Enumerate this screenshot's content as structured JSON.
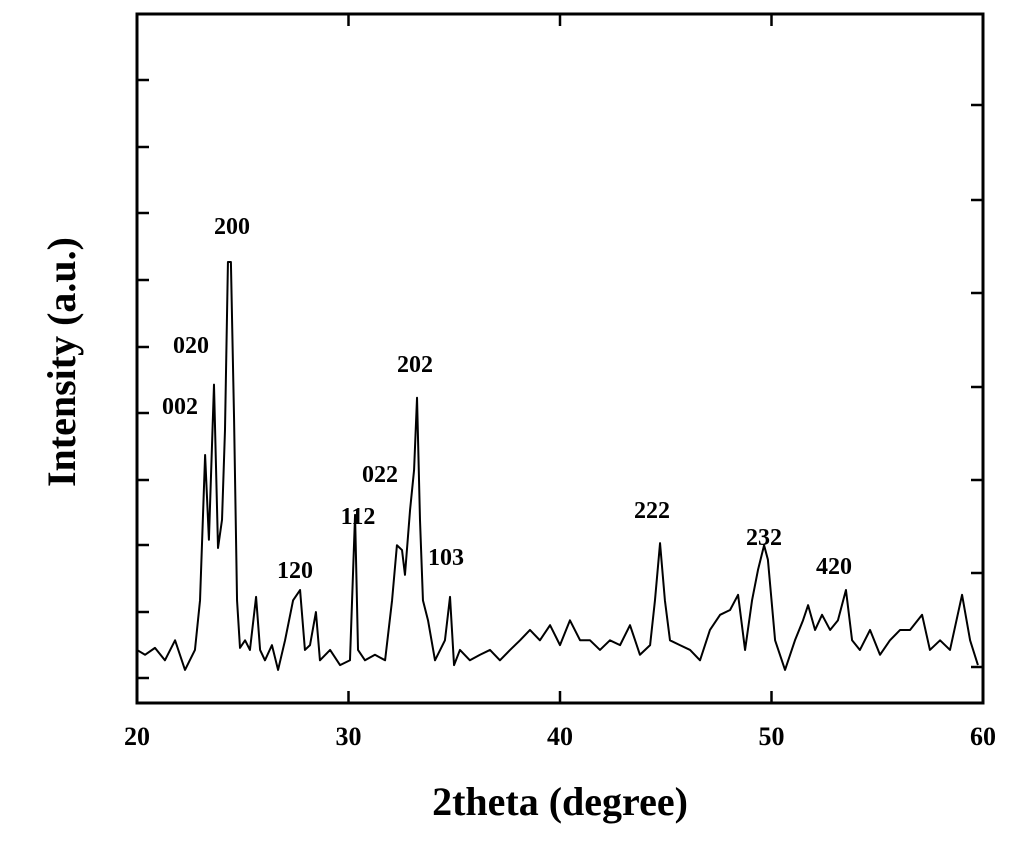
{
  "chart_data": {
    "type": "line",
    "x_label": "2theta (degree)",
    "y_label": "Intensity (a.u.)",
    "xlim": [
      20,
      60
    ],
    "xticks": [
      20,
      30,
      40,
      50,
      60
    ],
    "ylim": [
      0,
      100
    ],
    "series": [
      {
        "color": "#000000",
        "x": [
          20.0,
          20.38,
          20.85,
          21.32,
          21.8,
          22.27,
          22.74,
          22.98,
          23.22,
          23.4,
          23.64,
          23.83,
          24.02,
          24.16,
          24.3,
          24.44,
          24.59,
          24.73,
          24.87,
          25.11,
          25.34,
          25.63,
          25.82,
          26.05,
          26.38,
          26.67,
          27.0,
          27.38,
          27.71,
          27.94,
          28.18,
          28.46,
          28.65,
          29.13,
          29.6,
          30.07,
          30.31,
          30.45,
          30.78,
          31.25,
          31.73,
          32.06,
          32.29,
          32.53,
          32.67,
          32.91,
          33.1,
          33.24,
          33.38,
          33.52,
          33.76,
          34.09,
          34.56,
          34.8,
          34.99,
          35.27,
          35.74,
          36.22,
          36.69,
          37.16,
          37.64,
          38.11,
          38.58,
          39.05,
          39.53,
          40.0,
          40.47,
          40.95,
          41.42,
          41.89,
          42.36,
          42.84,
          43.31,
          43.78,
          44.26,
          44.49,
          44.73,
          44.96,
          45.2,
          45.67,
          46.15,
          46.62,
          47.09,
          47.57,
          48.04,
          48.42,
          48.75,
          49.08,
          49.36,
          49.65,
          49.83,
          50.17,
          50.64,
          51.11,
          51.49,
          51.73,
          52.06,
          52.39,
          52.77,
          53.14,
          53.52,
          53.81,
          54.18,
          54.66,
          55.13,
          55.6,
          56.08,
          56.55,
          57.12,
          57.49,
          57.97,
          58.44,
          59.01,
          59.39,
          59.76
        ],
        "values": [
          7.7,
          7.0,
          8.0,
          6.2,
          9.1,
          4.8,
          7.7,
          14.9,
          36.0,
          23.7,
          46.2,
          22.5,
          26.6,
          39.6,
          64.0,
          64.0,
          41.1,
          14.9,
          8.0,
          9.1,
          7.7,
          15.4,
          7.7,
          6.2,
          8.4,
          4.8,
          9.1,
          14.9,
          16.4,
          7.7,
          8.4,
          13.2,
          6.2,
          7.7,
          5.5,
          6.2,
          27.3,
          7.7,
          6.2,
          7.0,
          6.2,
          14.9,
          22.9,
          22.2,
          18.6,
          28.0,
          33.8,
          44.3,
          26.6,
          14.9,
          12.0,
          6.2,
          9.1,
          15.4,
          5.5,
          7.7,
          6.2,
          7.0,
          7.7,
          6.2,
          7.7,
          9.1,
          10.6,
          9.1,
          11.3,
          8.4,
          12.0,
          9.1,
          9.1,
          7.7,
          9.1,
          8.4,
          11.3,
          7.0,
          8.4,
          14.9,
          23.2,
          14.9,
          9.1,
          8.4,
          7.7,
          6.2,
          10.6,
          12.8,
          13.5,
          15.7,
          7.7,
          14.9,
          19.3,
          22.9,
          20.8,
          9.1,
          4.8,
          9.1,
          12.0,
          14.2,
          10.6,
          12.8,
          10.6,
          12.0,
          16.4,
          9.1,
          7.7,
          10.6,
          7.0,
          9.1,
          10.6,
          10.6,
          12.8,
          7.7,
          9.1,
          7.7,
          15.7,
          9.1,
          5.5
        ]
      }
    ],
    "annotations": [
      "200",
      "020",
      "002",
      "120",
      "112",
      "202",
      "022",
      "103",
      "222",
      "232",
      "420"
    ]
  }
}
